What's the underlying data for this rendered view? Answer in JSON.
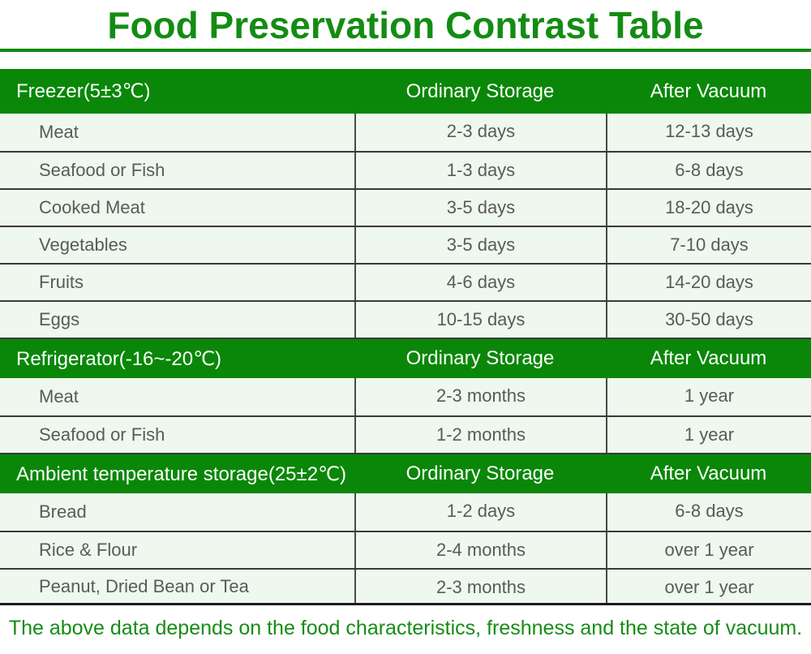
{
  "title": "Food Preservation Contrast Table",
  "colors": {
    "title_green": "#148c14",
    "header_band_green": "#0a8708",
    "row_background": "#eef8ee",
    "row_text_gray": "#5a5a5a",
    "footer_green": "#168c16"
  },
  "sections": [
    {
      "label": "Freezer(5±3℃)",
      "ordinary_header": "Ordinary Storage",
      "vacuum_header": "After Vacuum",
      "rows": [
        {
          "item": "Meat",
          "ordinary": "2-3 days",
          "vacuum": "12-13 days"
        },
        {
          "item": "Seafood or Fish",
          "ordinary": "1-3 days",
          "vacuum": "6-8 days"
        },
        {
          "item": "Cooked Meat",
          "ordinary": "3-5 days",
          "vacuum": "18-20 days"
        },
        {
          "item": "Vegetables",
          "ordinary": "3-5 days",
          "vacuum": "7-10 days"
        },
        {
          "item": "Fruits",
          "ordinary": "4-6 days",
          "vacuum": "14-20 days"
        },
        {
          "item": "Eggs",
          "ordinary": "10-15 days",
          "vacuum": "30-50 days"
        }
      ]
    },
    {
      "label": "Refrigerator(-16~-20℃)",
      "ordinary_header": "Ordinary Storage",
      "vacuum_header": "After Vacuum",
      "rows": [
        {
          "item": "Meat",
          "ordinary": "2-3 months",
          "vacuum": "1 year"
        },
        {
          "item": "Seafood or Fish",
          "ordinary": "1-2 months",
          "vacuum": "1 year"
        }
      ]
    },
    {
      "label": "Ambient temperature storage(25±2℃)",
      "ordinary_header": "Ordinary Storage",
      "vacuum_header": "After Vacuum",
      "rows": [
        {
          "item": "Bread",
          "ordinary": "1-2 days",
          "vacuum": "6-8 days"
        },
        {
          "item": "Rice & Flour",
          "ordinary": "2-4 months",
          "vacuum": "over 1 year"
        },
        {
          "item": "Peanut, Dried Bean or Tea",
          "ordinary": "2-3 months",
          "vacuum": "over 1 year"
        }
      ]
    }
  ],
  "footer": "The above data depends on the food characteristics, freshness and the state of vacuum."
}
